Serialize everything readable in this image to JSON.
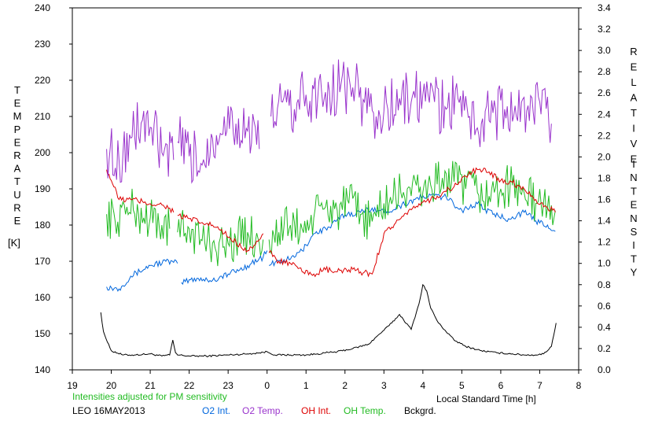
{
  "chart_data": {
    "type": "line",
    "left_axis_label_letters": [
      "T",
      "E",
      "M",
      "P",
      "E",
      "R",
      "A",
      "T",
      "U",
      "R",
      "E"
    ],
    "left_axis_unit": "[K]",
    "right_axis_label_letters": [
      "R",
      "E",
      "L",
      "A",
      "T",
      "I",
      "V",
      "E"
    ],
    "right_axis_label_letters_2": [
      "I",
      "N",
      "T",
      "E",
      "N",
      "S",
      "I",
      "T",
      "Y"
    ],
    "xlabel": "Local Standard Time [h]",
    "note": "Intensities adjusted for PM sensitivity",
    "station": "LEO 16MAY2013",
    "x_ticks": [
      "19",
      "20",
      "21",
      "22",
      "23",
      "0",
      "1",
      "2",
      "3",
      "4",
      "5",
      "6",
      "7",
      "8"
    ],
    "x_range_hours": [
      19,
      32
    ],
    "y_left_range": [
      140,
      240
    ],
    "y_left_ticks": [
      "140",
      "150",
      "160",
      "170",
      "180",
      "190",
      "200",
      "210",
      "220",
      "230",
      "240"
    ],
    "y_right_range": [
      0.0,
      3.4
    ],
    "y_right_ticks": [
      "0.0",
      "0.2",
      "0.4",
      "0.6",
      "0.8",
      "1.0",
      "1.2",
      "1.4",
      "1.6",
      "1.8",
      "2.0",
      "2.2",
      "2.4",
      "2.6",
      "2.8",
      "3.0",
      "3.2",
      "3.4"
    ],
    "grid": false,
    "colors": {
      "o2_int": "#0066dd",
      "o2_temp": "#9933cc",
      "oh_int": "#dd0000",
      "oh_temp": "#22bb22",
      "bckgrd": "#000000",
      "note": "#22bb22"
    },
    "series": [
      {
        "name": "O2 Int.",
        "axis": "right",
        "key": "o2_int",
        "x": [
          19.88,
          20.2,
          20.5,
          21.0,
          21.4,
          21.7,
          null,
          21.8,
          22.2,
          22.6,
          23.0,
          23.3,
          23.6,
          23.9,
          24.0,
          null,
          24.05,
          24.3,
          24.6,
          24.9,
          25.2,
          25.6,
          26.0,
          26.4,
          26.7,
          27.0,
          27.4,
          27.8,
          28.2,
          28.6,
          29.0,
          29.4,
          29.8,
          30.2,
          30.6,
          30.9,
          31.2,
          31.4
        ],
        "y": [
          0.78,
          0.76,
          0.88,
          0.98,
          1.02,
          1.0,
          null,
          0.82,
          0.86,
          0.84,
          0.9,
          0.94,
          1.0,
          1.06,
          1.12,
          null,
          0.98,
          1.02,
          1.04,
          1.12,
          1.28,
          1.34,
          1.46,
          1.48,
          1.52,
          1.48,
          1.54,
          1.6,
          1.64,
          1.62,
          1.5,
          1.56,
          1.46,
          1.42,
          1.48,
          1.4,
          1.36,
          1.3
        ]
      },
      {
        "name": "O2 Temp.",
        "axis": "left",
        "key": "o2_temp",
        "x": [
          19.88,
          20.2,
          20.5,
          20.8,
          21.0,
          21.3,
          21.6,
          null,
          21.7,
          22.0,
          22.3,
          22.6,
          22.9,
          23.2,
          23.5,
          23.8,
          null,
          24.1,
          24.4,
          24.7,
          25.0,
          25.3,
          25.6,
          25.9,
          26.2,
          26.5,
          26.8,
          27.1,
          27.4,
          27.7,
          28.0,
          28.3,
          28.6,
          28.9,
          29.2,
          29.5,
          29.8,
          30.1,
          30.4,
          30.7,
          31.0,
          31.3
        ],
        "y": [
          201,
          198,
          204,
          209,
          207,
          200,
          198,
          null,
          203,
          199,
          197,
          204,
          210,
          208,
          206,
          201,
          null,
          210,
          214,
          212,
          216,
          215,
          217,
          219,
          218,
          214,
          210,
          212,
          215,
          214,
          216,
          214,
          212,
          215,
          210,
          208,
          211,
          212,
          210,
          213,
          214,
          208
        ]
      },
      {
        "name": "OH Int.",
        "axis": "right",
        "key": "oh_int",
        "x": [
          19.88,
          20.0,
          20.2,
          20.5,
          20.8,
          21.0,
          21.3,
          21.5,
          21.6,
          null,
          21.7,
          22.0,
          22.3,
          22.6,
          22.9,
          23.2,
          23.5,
          23.8,
          23.9,
          null,
          24.05,
          24.3,
          24.6,
          24.9,
          25.2,
          25.5,
          25.8,
          26.1,
          26.4,
          26.7,
          27.0,
          27.3,
          27.6,
          27.9,
          28.2,
          28.5,
          28.8,
          29.1,
          29.4,
          29.7,
          30.0,
          30.3,
          30.6,
          30.9,
          31.2,
          31.4
        ],
        "y": [
          1.88,
          1.78,
          1.6,
          1.6,
          1.58,
          1.56,
          1.55,
          1.52,
          1.48,
          null,
          1.45,
          1.42,
          1.38,
          1.36,
          1.28,
          1.2,
          1.12,
          1.22,
          1.28,
          null,
          1.1,
          1.02,
          1.0,
          0.92,
          0.9,
          0.94,
          0.92,
          0.94,
          0.92,
          0.9,
          1.28,
          1.38,
          1.46,
          1.56,
          1.6,
          1.66,
          1.72,
          1.82,
          1.88,
          1.86,
          1.78,
          1.76,
          1.7,
          1.6,
          1.52,
          1.48
        ]
      },
      {
        "name": "OH Temp.",
        "axis": "left",
        "key": "oh_temp",
        "x": [
          19.88,
          20.1,
          20.4,
          20.7,
          21.0,
          21.3,
          21.5,
          null,
          21.7,
          22.0,
          22.3,
          22.6,
          22.9,
          23.2,
          23.5,
          23.8,
          23.9,
          null,
          24.05,
          24.3,
          24.6,
          24.9,
          25.2,
          25.5,
          25.8,
          26.1,
          26.4,
          26.7,
          27.0,
          27.3,
          27.6,
          27.9,
          28.2,
          28.5,
          28.8,
          29.1,
          29.4,
          29.7,
          30.0,
          30.3,
          30.6,
          30.9,
          31.2,
          31.4
        ],
        "y": [
          183,
          181,
          185,
          183,
          182,
          180,
          179,
          null,
          178,
          179,
          176,
          175,
          174,
          176,
          178,
          175,
          176,
          null,
          176,
          178,
          180,
          179,
          182,
          185,
          184,
          186,
          183,
          181,
          186,
          188,
          190,
          189,
          191,
          193,
          192,
          190,
          189,
          188,
          190,
          191,
          189,
          186,
          185,
          184
        ]
      },
      {
        "name": "Bckgrd.",
        "axis": "right",
        "key": "bckgrd",
        "x": [
          19.73,
          19.8,
          19.9,
          20.0,
          20.3,
          20.6,
          21.0,
          21.3,
          21.5,
          21.58,
          21.65,
          21.7,
          22.0,
          22.5,
          23.0,
          23.5,
          23.8,
          24.0,
          24.2,
          24.6,
          25.0,
          25.3,
          25.5,
          25.8,
          26.2,
          26.6,
          26.9,
          27.2,
          27.4,
          27.7,
          27.9,
          28.0,
          28.1,
          28.2,
          28.4,
          28.8,
          29.1,
          29.5,
          29.9,
          30.3,
          30.6,
          30.9,
          31.1,
          31.3,
          31.42
        ],
        "y": [
          0.54,
          0.36,
          0.26,
          0.18,
          0.14,
          0.14,
          0.15,
          0.13,
          0.14,
          0.28,
          0.16,
          0.14,
          0.13,
          0.13,
          0.14,
          0.15,
          0.16,
          0.17,
          0.14,
          0.14,
          0.14,
          0.15,
          0.16,
          0.17,
          0.2,
          0.24,
          0.34,
          0.44,
          0.52,
          0.38,
          0.62,
          0.8,
          0.74,
          0.58,
          0.44,
          0.28,
          0.22,
          0.18,
          0.16,
          0.15,
          0.14,
          0.14,
          0.15,
          0.22,
          0.44
        ]
      }
    ]
  }
}
